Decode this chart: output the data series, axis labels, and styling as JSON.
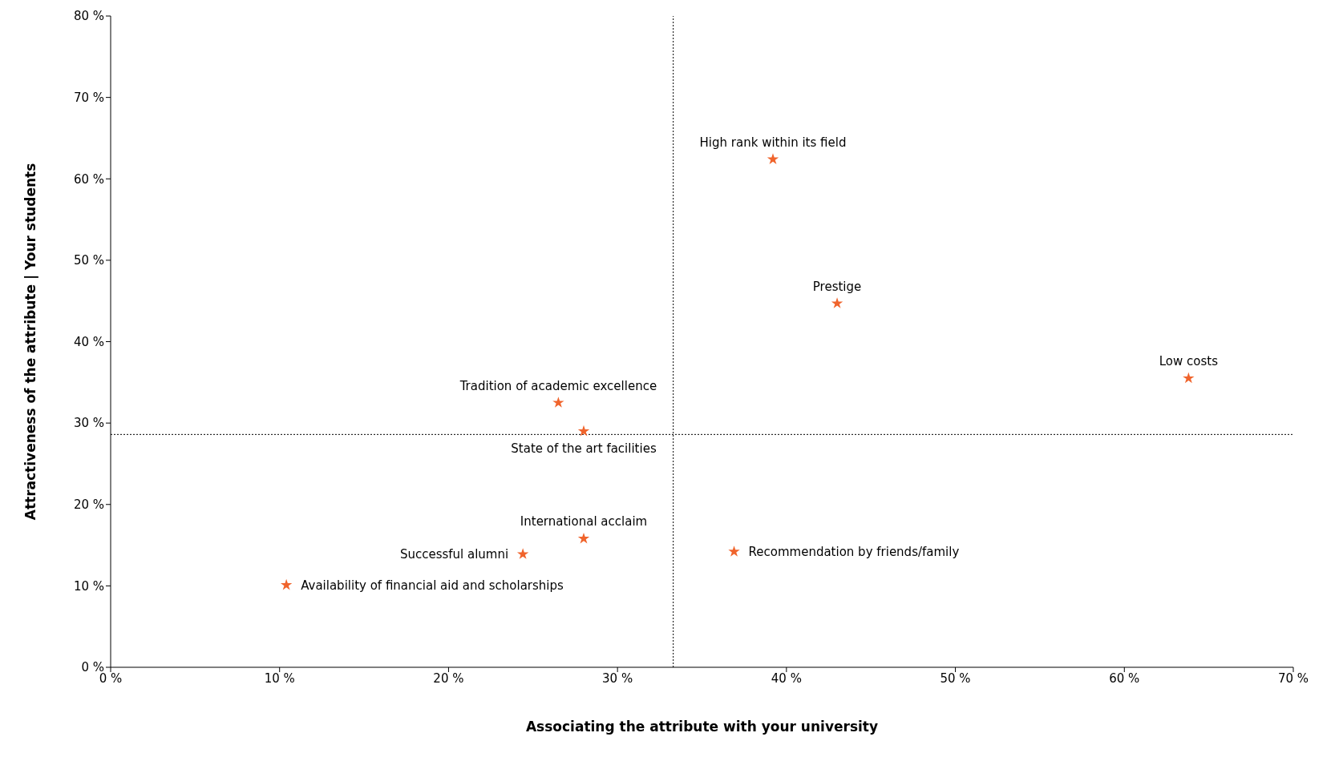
{
  "chart_data": {
    "type": "scatter",
    "xlabel": "Associating the attribute with your university",
    "ylabel": "Attractiveness of the attribute | Your students",
    "xlim": [
      0,
      70
    ],
    "xticks": [
      {
        "value": 0,
        "label": "0 %"
      },
      {
        "value": 10,
        "label": "10 %"
      },
      {
        "value": 20,
        "label": "20 %"
      },
      {
        "value": 30,
        "label": "30 %"
      },
      {
        "value": 40,
        "label": "40 %"
      },
      {
        "value": 50,
        "label": "50 %"
      },
      {
        "value": 60,
        "label": "60 %"
      },
      {
        "value": 70,
        "label": "70 %"
      }
    ],
    "ylim": [
      0,
      80
    ],
    "yticks": [
      {
        "value": 0,
        "label": "0 %"
      },
      {
        "value": 10,
        "label": "10 %"
      },
      {
        "value": 20,
        "label": "20 %"
      },
      {
        "value": 30,
        "label": "30 %"
      },
      {
        "value": 40,
        "label": "40 %"
      },
      {
        "value": 50,
        "label": "50 %"
      },
      {
        "value": 60,
        "label": "60 %"
      },
      {
        "value": 70,
        "label": "70 %"
      },
      {
        "value": 80,
        "label": "80 %"
      }
    ],
    "grid": false,
    "marker": "star",
    "series": [
      {
        "color": "#f0642c",
        "x": [
          39.2,
          43.0,
          63.8,
          26.5,
          28.0,
          28.0,
          24.4,
          36.9,
          10.4
        ],
        "values": [
          62.4,
          44.7,
          35.5,
          32.5,
          29.0,
          15.8,
          13.9,
          14.2,
          10.1
        ]
      }
    ],
    "annotations": [
      {
        "text": "High rank within its field",
        "x": 39.2,
        "y": 62.4
      },
      {
        "text": "Prestige",
        "x": 43.0,
        "y": 44.7
      },
      {
        "text": "Low costs",
        "x": 63.8,
        "y": 35.5
      },
      {
        "text": "Tradition of academic excellence",
        "x": 26.5,
        "y": 32.5
      },
      {
        "text": "State of the art facilities",
        "x": 28.0,
        "y": 29.0
      },
      {
        "text": "International acclaim",
        "x": 28.0,
        "y": 15.8
      },
      {
        "text": "Successful alumni",
        "x": 24.4,
        "y": 13.9
      },
      {
        "text": "Recommendation by friends/family",
        "x": 36.9,
        "y": 14.2
      },
      {
        "text": "Availability of financial aid and scholarships",
        "x": 10.4,
        "y": 10.1
      }
    ],
    "ref_lines": [
      {
        "axis": "x",
        "value": 33.3,
        "color": "#000000",
        "line_style": "dotted"
      },
      {
        "axis": "y",
        "value": 28.6,
        "color": "#000000",
        "line_style": "dotted"
      }
    ]
  }
}
